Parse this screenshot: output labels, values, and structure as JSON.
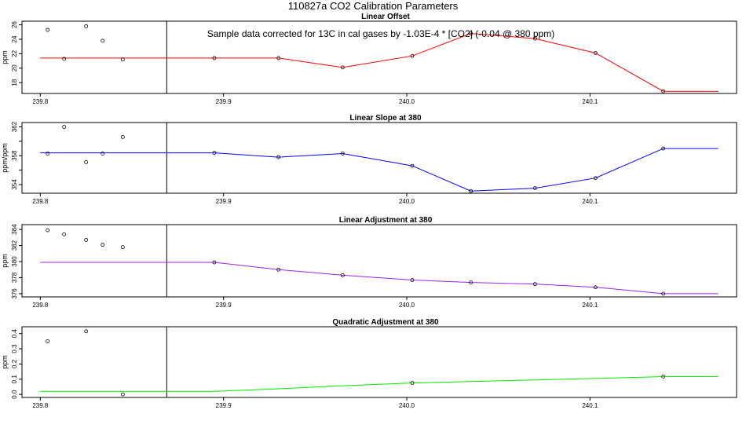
{
  "title": "110827a   CO2 Calibration Parameters",
  "chart_data": [
    {
      "type": "line",
      "title": "Linear Offset",
      "ylabel": "ppm",
      "annotation": "Sample data corrected for 13C in cal gases by -1.03E-4 * [CO2] (-0.04 @ 380 ppm)",
      "xlim": [
        239.79,
        240.18
      ],
      "ylim": [
        16.5,
        26.5
      ],
      "xticks": [
        239.8,
        239.9,
        240.0,
        240.1
      ],
      "xtick_labels": [
        "239.8",
        "239.9",
        "240.0",
        "240.1"
      ],
      "yticks": [
        18,
        20,
        22,
        24,
        26
      ],
      "ytick_labels": [
        "18",
        "20",
        "22",
        "24",
        "26"
      ],
      "vline_x": 239.869,
      "line_color": "#ff0000",
      "line": [
        [
          239.8,
          21.4
        ],
        [
          239.895,
          21.4
        ],
        [
          239.93,
          21.4
        ],
        [
          239.965,
          20.1
        ],
        [
          240.003,
          21.7
        ],
        [
          240.035,
          24.8
        ],
        [
          240.07,
          24.1
        ],
        [
          240.103,
          22.1
        ],
        [
          240.14,
          16.8
        ],
        [
          240.17,
          16.8
        ]
      ],
      "points": [
        [
          239.895,
          21.4
        ],
        [
          239.93,
          21.4
        ],
        [
          239.965,
          20.1
        ],
        [
          240.003,
          21.7
        ],
        [
          240.035,
          24.8
        ],
        [
          240.07,
          24.1
        ],
        [
          240.103,
          22.1
        ],
        [
          240.14,
          16.8
        ]
      ],
      "scatter": [
        [
          239.804,
          25.3
        ],
        [
          239.813,
          21.3
        ],
        [
          239.825,
          25.8
        ],
        [
          239.834,
          23.8
        ],
        [
          239.845,
          21.2
        ]
      ]
    },
    {
      "type": "line",
      "title": "Linear Slope at 380",
      "ylabel": "ppm/ppm",
      "xlim": [
        239.79,
        240.18
      ],
      "ylim": [
        352.8,
        362.6
      ],
      "xticks": [
        239.8,
        239.9,
        240.0,
        240.1
      ],
      "xtick_labels": [
        "239.8",
        "239.9",
        "240.0",
        "240.1"
      ],
      "yticks": [
        354,
        356,
        358,
        360,
        362
      ],
      "ytick_labels": [
        "354",
        "",
        "358",
        "",
        "362"
      ],
      "vline_x": 239.869,
      "line_color": "#0000ff",
      "line": [
        [
          239.8,
          358.4
        ],
        [
          239.895,
          358.4
        ],
        [
          239.93,
          357.8
        ],
        [
          239.965,
          358.3
        ],
        [
          240.003,
          356.6
        ],
        [
          240.035,
          353.1
        ],
        [
          240.07,
          353.5
        ],
        [
          240.103,
          354.9
        ],
        [
          240.14,
          359.0
        ],
        [
          240.17,
          359.0
        ]
      ],
      "points": [
        [
          239.895,
          358.4
        ],
        [
          239.93,
          357.8
        ],
        [
          239.965,
          358.3
        ],
        [
          240.003,
          356.6
        ],
        [
          240.035,
          353.1
        ],
        [
          240.07,
          353.5
        ],
        [
          240.103,
          354.9
        ],
        [
          240.14,
          359.0
        ]
      ],
      "scatter": [
        [
          239.804,
          358.3
        ],
        [
          239.813,
          362.0
        ],
        [
          239.825,
          357.1
        ],
        [
          239.834,
          358.3
        ],
        [
          239.845,
          360.6
        ]
      ]
    },
    {
      "type": "line",
      "title": "Linear Adjustment at 380",
      "ylabel": "ppm",
      "xlim": [
        239.79,
        240.18
      ],
      "ylim": [
        375.6,
        384.6
      ],
      "xticks": [
        239.8,
        239.9,
        240.0,
        240.1
      ],
      "xtick_labels": [
        "239.8",
        "239.9",
        "240.0",
        "240.1"
      ],
      "yticks": [
        376,
        378,
        380,
        382,
        384
      ],
      "ytick_labels": [
        "376",
        "378",
        "380",
        "382",
        "384"
      ],
      "vline_x": 239.869,
      "line_color": "#a020f0",
      "line": [
        [
          239.8,
          379.9
        ],
        [
          239.895,
          379.9
        ],
        [
          239.93,
          379.0
        ],
        [
          239.965,
          378.3
        ],
        [
          240.003,
          377.7
        ],
        [
          240.035,
          377.4
        ],
        [
          240.07,
          377.2
        ],
        [
          240.103,
          376.8
        ],
        [
          240.14,
          376.0
        ],
        [
          240.17,
          376.0
        ]
      ],
      "points": [
        [
          239.895,
          379.9
        ],
        [
          239.93,
          379.0
        ],
        [
          239.965,
          378.3
        ],
        [
          240.003,
          377.7
        ],
        [
          240.035,
          377.4
        ],
        [
          240.07,
          377.2
        ],
        [
          240.103,
          376.8
        ],
        [
          240.14,
          376.0
        ]
      ],
      "scatter": [
        [
          239.804,
          383.9
        ],
        [
          239.813,
          383.4
        ],
        [
          239.825,
          382.7
        ],
        [
          239.834,
          382.1
        ],
        [
          239.845,
          381.8
        ]
      ]
    },
    {
      "type": "line",
      "title": "Quadratic Adjustment at 380",
      "ylabel": "ppm",
      "xlim": [
        239.79,
        240.18
      ],
      "ylim": [
        -0.02,
        0.445
      ],
      "xticks": [
        239.8,
        239.9,
        240.0,
        240.1
      ],
      "xtick_labels": [
        "239.8",
        "239.9",
        "240.0",
        "240.1"
      ],
      "yticks": [
        0.0,
        0.1,
        0.2,
        0.3,
        0.4
      ],
      "ytick_labels": [
        "0.0",
        "0.1",
        "0.2",
        "0.3",
        "0.4"
      ],
      "vline_x": 239.869,
      "line_color": "#00ee00",
      "line": [
        [
          239.8,
          0.02
        ],
        [
          239.895,
          0.02
        ],
        [
          239.93,
          0.037
        ],
        [
          239.965,
          0.057
        ],
        [
          240.003,
          0.075
        ],
        [
          240.035,
          0.085
        ],
        [
          240.07,
          0.095
        ],
        [
          240.103,
          0.105
        ],
        [
          240.14,
          0.117
        ],
        [
          240.17,
          0.117
        ]
      ],
      "points": [
        [
          240.003,
          0.075
        ],
        [
          240.14,
          0.117
        ]
      ],
      "scatter": [
        [
          239.804,
          0.35
        ],
        [
          239.825,
          0.415
        ],
        [
          239.845,
          0.0
        ]
      ]
    }
  ]
}
